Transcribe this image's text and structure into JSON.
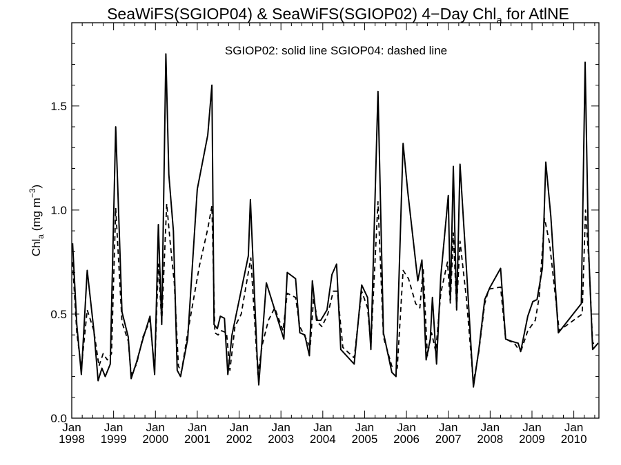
{
  "chart_data": {
    "type": "line",
    "title": {
      "prefix": "SeaWiFS(SGIOP04) & SeaWiFS(SGIOP02) 4−Day Chl",
      "subscript": "a",
      "suffix": " for AtlNE"
    },
    "ylabel": {
      "prefix": "Chl",
      "subscript": "a",
      "middle": " (mg m",
      "superscript": "−3",
      "suffix": ")"
    },
    "legend_text": "SGIOP02: solid line   SGIOP04: dashed line",
    "legend_placement": "top-center",
    "grid": false,
    "xlim": [
      1998.0,
      2010.6
    ],
    "ylim": [
      0.0,
      1.9
    ],
    "y_ticks": [
      {
        "value": 0.0,
        "label": "0.0"
      },
      {
        "value": 0.5,
        "label": "0.5"
      },
      {
        "value": 1.0,
        "label": "1.0"
      },
      {
        "value": 1.5,
        "label": "1.5"
      }
    ],
    "x_ticks": [
      {
        "value": 1998,
        "month": "Jan",
        "year": "1998"
      },
      {
        "value": 1999,
        "month": "Jan",
        "year": "1999"
      },
      {
        "value": 2000,
        "month": "Jan",
        "year": "2000"
      },
      {
        "value": 2001,
        "month": "Jan",
        "year": "2001"
      },
      {
        "value": 2002,
        "month": "Jan",
        "year": "2002"
      },
      {
        "value": 2003,
        "month": "Jan",
        "year": "2003"
      },
      {
        "value": 2004,
        "month": "Jan",
        "year": "2004"
      },
      {
        "value": 2005,
        "month": "Jan",
        "year": "2005"
      },
      {
        "value": 2006,
        "month": "Jan",
        "year": "2006"
      },
      {
        "value": 2007,
        "month": "Jan",
        "year": "2007"
      },
      {
        "value": 2008,
        "month": "Jan",
        "year": "2008"
      },
      {
        "value": 2009,
        "month": "Jan",
        "year": "2009"
      },
      {
        "value": 2010,
        "month": "Jan",
        "year": "2010"
      }
    ],
    "series": [
      {
        "style": "solid",
        "points": [
          [
            1998.02,
            0.84
          ],
          [
            1998.12,
            0.45
          ],
          [
            1998.23,
            0.21
          ],
          [
            1998.37,
            0.71
          ],
          [
            1998.53,
            0.42
          ],
          [
            1998.63,
            0.18
          ],
          [
            1998.72,
            0.24
          ],
          [
            1998.8,
            0.2
          ],
          [
            1998.92,
            0.26
          ],
          [
            1999.05,
            1.4
          ],
          [
            1999.2,
            0.51
          ],
          [
            1999.35,
            0.39
          ],
          [
            1999.42,
            0.19
          ],
          [
            1999.55,
            0.27
          ],
          [
            1999.7,
            0.38
          ],
          [
            1999.87,
            0.49
          ],
          [
            1999.98,
            0.21
          ],
          [
            2000.07,
            0.93
          ],
          [
            2000.15,
            0.45
          ],
          [
            2000.25,
            1.75
          ],
          [
            2000.32,
            1.17
          ],
          [
            2000.43,
            0.9
          ],
          [
            2000.52,
            0.23
          ],
          [
            2000.6,
            0.2
          ],
          [
            2000.77,
            0.38
          ],
          [
            2001.0,
            1.1
          ],
          [
            2001.25,
            1.36
          ],
          [
            2001.35,
            1.6
          ],
          [
            2001.4,
            0.45
          ],
          [
            2001.48,
            0.43
          ],
          [
            2001.55,
            0.49
          ],
          [
            2001.65,
            0.48
          ],
          [
            2001.73,
            0.21
          ],
          [
            2001.83,
            0.4
          ],
          [
            2002.22,
            0.78
          ],
          [
            2002.27,
            1.05
          ],
          [
            2002.43,
            0.3
          ],
          [
            2002.47,
            0.16
          ],
          [
            2002.65,
            0.65
          ],
          [
            2003.07,
            0.38
          ],
          [
            2003.15,
            0.7
          ],
          [
            2003.35,
            0.67
          ],
          [
            2003.45,
            0.41
          ],
          [
            2003.57,
            0.4
          ],
          [
            2003.68,
            0.3
          ],
          [
            2003.75,
            0.66
          ],
          [
            2003.85,
            0.47
          ],
          [
            2003.95,
            0.47
          ],
          [
            2004.1,
            0.52
          ],
          [
            2004.22,
            0.69
          ],
          [
            2004.33,
            0.74
          ],
          [
            2004.43,
            0.33
          ],
          [
            2004.75,
            0.26
          ],
          [
            2004.93,
            0.64
          ],
          [
            2005.07,
            0.58
          ],
          [
            2005.15,
            0.33
          ],
          [
            2005.32,
            1.57
          ],
          [
            2005.45,
            0.41
          ],
          [
            2005.65,
            0.22
          ],
          [
            2005.75,
            0.2
          ],
          [
            2005.92,
            1.32
          ],
          [
            2006.03,
            1.09
          ],
          [
            2006.27,
            0.66
          ],
          [
            2006.37,
            0.76
          ],
          [
            2006.47,
            0.28
          ],
          [
            2006.57,
            0.38
          ],
          [
            2006.62,
            0.58
          ],
          [
            2006.72,
            0.26
          ],
          [
            2006.82,
            0.68
          ],
          [
            2007.0,
            1.07
          ],
          [
            2007.05,
            0.57
          ],
          [
            2007.12,
            1.21
          ],
          [
            2007.2,
            0.52
          ],
          [
            2007.28,
            1.22
          ],
          [
            2007.43,
            0.73
          ],
          [
            2007.6,
            0.15
          ],
          [
            2007.73,
            0.33
          ],
          [
            2007.87,
            0.57
          ],
          [
            2008.0,
            0.63
          ],
          [
            2008.25,
            0.72
          ],
          [
            2008.37,
            0.38
          ],
          [
            2008.5,
            0.37
          ],
          [
            2008.67,
            0.36
          ],
          [
            2008.73,
            0.32
          ],
          [
            2008.9,
            0.49
          ],
          [
            2009.02,
            0.56
          ],
          [
            2009.12,
            0.57
          ],
          [
            2009.25,
            0.72
          ],
          [
            2009.33,
            1.23
          ],
          [
            2009.45,
            0.97
          ],
          [
            2009.63,
            0.41
          ],
          [
            2010.18,
            0.55
          ],
          [
            2010.27,
            1.71
          ],
          [
            2010.35,
            0.83
          ],
          [
            2010.45,
            0.33
          ],
          [
            2010.58,
            0.36
          ]
        ]
      },
      {
        "style": "dashed",
        "points": [
          [
            1998.02,
            0.75
          ],
          [
            1998.12,
            0.41
          ],
          [
            1998.23,
            0.24
          ],
          [
            1998.37,
            0.52
          ],
          [
            1998.53,
            0.42
          ],
          [
            1998.65,
            0.25
          ],
          [
            1998.75,
            0.31
          ],
          [
            1998.85,
            0.28
          ],
          [
            1998.95,
            0.31
          ],
          [
            1999.05,
            1.01
          ],
          [
            1999.2,
            0.46
          ],
          [
            1999.35,
            0.37
          ],
          [
            1999.42,
            0.21
          ],
          [
            1999.55,
            0.26
          ],
          [
            1999.7,
            0.39
          ],
          [
            1999.87,
            0.47
          ],
          [
            1999.98,
            0.23
          ],
          [
            2000.07,
            0.74
          ],
          [
            2000.15,
            0.46
          ],
          [
            2000.27,
            1.03
          ],
          [
            2000.35,
            0.85
          ],
          [
            2000.45,
            0.65
          ],
          [
            2000.55,
            0.25
          ],
          [
            2000.62,
            0.22
          ],
          [
            2000.77,
            0.41
          ],
          [
            2001.05,
            0.73
          ],
          [
            2001.25,
            0.91
          ],
          [
            2001.35,
            1.02
          ],
          [
            2001.42,
            0.41
          ],
          [
            2001.5,
            0.4
          ],
          [
            2001.58,
            0.42
          ],
          [
            2001.7,
            0.41
          ],
          [
            2001.78,
            0.23
          ],
          [
            2001.9,
            0.44
          ],
          [
            2002.05,
            0.5
          ],
          [
            2002.28,
            0.77
          ],
          [
            2002.45,
            0.21
          ],
          [
            2002.55,
            0.35
          ],
          [
            2002.7,
            0.47
          ],
          [
            2002.85,
            0.53
          ],
          [
            2003.05,
            0.42
          ],
          [
            2003.15,
            0.6
          ],
          [
            2003.35,
            0.58
          ],
          [
            2003.45,
            0.44
          ],
          [
            2003.58,
            0.39
          ],
          [
            2003.7,
            0.34
          ],
          [
            2003.78,
            0.58
          ],
          [
            2003.88,
            0.46
          ],
          [
            2003.98,
            0.44
          ],
          [
            2004.12,
            0.5
          ],
          [
            2004.25,
            0.61
          ],
          [
            2004.35,
            0.61
          ],
          [
            2004.48,
            0.34
          ],
          [
            2004.75,
            0.29
          ],
          [
            2004.93,
            0.61
          ],
          [
            2005.07,
            0.53
          ],
          [
            2005.15,
            0.35
          ],
          [
            2005.32,
            1.04
          ],
          [
            2005.45,
            0.39
          ],
          [
            2005.65,
            0.25
          ],
          [
            2005.78,
            0.24
          ],
          [
            2005.92,
            0.71
          ],
          [
            2006.05,
            0.67
          ],
          [
            2006.22,
            0.55
          ],
          [
            2006.32,
            0.53
          ],
          [
            2006.4,
            0.72
          ],
          [
            2006.5,
            0.3
          ],
          [
            2006.6,
            0.41
          ],
          [
            2006.7,
            0.32
          ],
          [
            2006.82,
            0.6
          ],
          [
            2006.98,
            0.75
          ],
          [
            2007.05,
            0.55
          ],
          [
            2007.12,
            0.89
          ],
          [
            2007.2,
            0.53
          ],
          [
            2007.28,
            0.85
          ],
          [
            2007.43,
            0.58
          ],
          [
            2007.6,
            0.17
          ],
          [
            2007.73,
            0.32
          ],
          [
            2007.87,
            0.55
          ],
          [
            2007.97,
            0.62
          ],
          [
            2008.25,
            0.63
          ],
          [
            2008.37,
            0.38
          ],
          [
            2008.58,
            0.36
          ],
          [
            2008.68,
            0.33
          ],
          [
            2008.75,
            0.33
          ],
          [
            2008.9,
            0.42
          ],
          [
            2009.08,
            0.47
          ],
          [
            2009.17,
            0.58
          ],
          [
            2009.3,
            0.96
          ],
          [
            2009.42,
            0.84
          ],
          [
            2009.65,
            0.42
          ],
          [
            2010.2,
            0.5
          ],
          [
            2010.28,
            1.0
          ],
          [
            2010.37,
            0.72
          ],
          [
            2010.45,
            0.36
          ],
          [
            2010.58,
            0.36
          ]
        ]
      }
    ]
  }
}
